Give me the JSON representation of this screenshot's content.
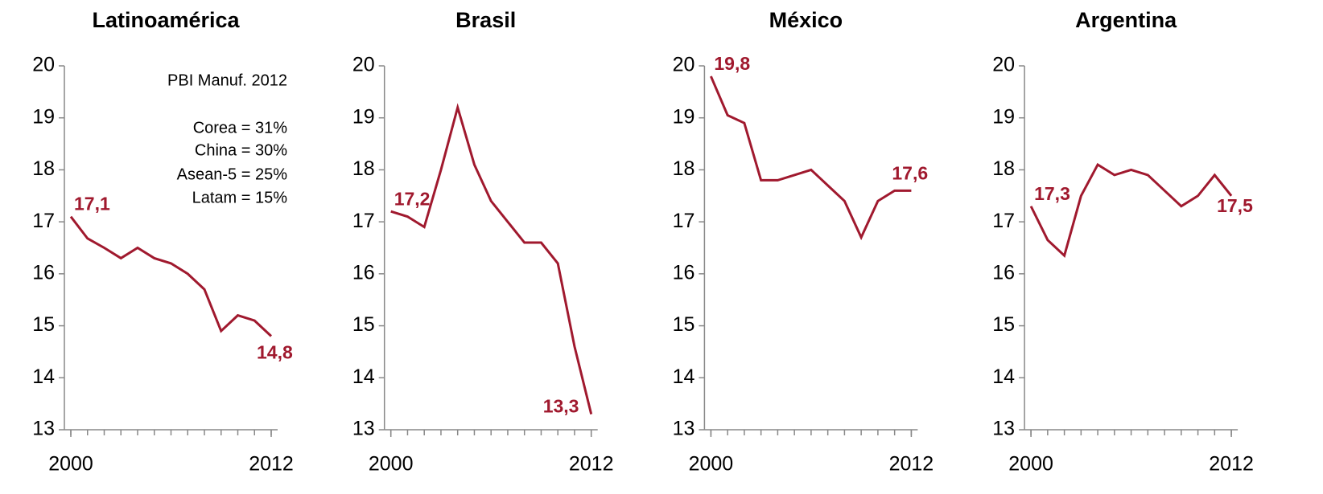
{
  "chart_data": [
    {
      "type": "line",
      "title": "Latinoamérica",
      "x": [
        2000,
        2001,
        2002,
        2003,
        2004,
        2005,
        2006,
        2007,
        2008,
        2009,
        2010,
        2011,
        2012
      ],
      "series": [
        {
          "name": "Latinoamérica",
          "color": "#a0192e",
          "values": [
            17.1,
            16.68,
            16.5,
            16.3,
            16.5,
            16.3,
            16.2,
            16.0,
            15.7,
            14.9,
            15.2,
            15.1,
            14.8
          ],
          "value_labels": [
            "17,1",
            null,
            null,
            null,
            null,
            null,
            null,
            null,
            null,
            null,
            null,
            null,
            "14,8"
          ]
        }
      ],
      "xlim": [
        2000,
        2012
      ],
      "xticks": [
        2000,
        2012
      ],
      "ylim": [
        13,
        20
      ],
      "yticks": [
        13,
        14,
        15,
        16,
        17,
        18,
        19,
        20
      ],
      "annotations": [
        "PBI Manuf. 2012",
        "Corea = 31%",
        "China = 30%",
        "Asean-5 = 25%",
        "Latam = 15%"
      ]
    },
    {
      "type": "line",
      "title": "Brasil",
      "x": [
        2000,
        2001,
        2002,
        2003,
        2004,
        2005,
        2006,
        2007,
        2008,
        2009,
        2010,
        2011,
        2012
      ],
      "series": [
        {
          "name": "Brasil",
          "color": "#a0192e",
          "values": [
            17.2,
            17.1,
            16.9,
            18.0,
            19.2,
            18.1,
            17.4,
            17.0,
            16.6,
            16.6,
            16.2,
            14.6,
            13.3
          ],
          "value_labels": [
            "17,2",
            null,
            null,
            null,
            null,
            null,
            null,
            null,
            null,
            null,
            null,
            null,
            "13,3"
          ]
        }
      ],
      "xlim": [
        2000,
        2012
      ],
      "xticks": [
        2000,
        2012
      ],
      "ylim": [
        13,
        20
      ],
      "yticks": [
        13,
        14,
        15,
        16,
        17,
        18,
        19,
        20
      ]
    },
    {
      "type": "line",
      "title": "México",
      "x": [
        2000,
        2001,
        2002,
        2003,
        2004,
        2005,
        2006,
        2007,
        2008,
        2009,
        2010,
        2011,
        2012
      ],
      "series": [
        {
          "name": "México",
          "color": "#a0192e",
          "values": [
            19.8,
            19.05,
            18.9,
            17.8,
            17.8,
            17.9,
            18.0,
            17.7,
            17.4,
            16.7,
            17.4,
            17.6,
            17.6
          ],
          "value_labels": [
            "19,8",
            null,
            null,
            null,
            null,
            null,
            null,
            null,
            null,
            null,
            null,
            null,
            "17,6"
          ]
        }
      ],
      "xlim": [
        2000,
        2012
      ],
      "xticks": [
        2000,
        2012
      ],
      "ylim": [
        13,
        20
      ],
      "yticks": [
        13,
        14,
        15,
        16,
        17,
        18,
        19,
        20
      ]
    },
    {
      "type": "line",
      "title": "Argentina",
      "x": [
        2000,
        2001,
        2002,
        2003,
        2004,
        2005,
        2006,
        2007,
        2008,
        2009,
        2010,
        2011,
        2012
      ],
      "series": [
        {
          "name": "Argentina",
          "color": "#a0192e",
          "values": [
            17.3,
            16.65,
            16.35,
            17.5,
            18.1,
            17.9,
            18.0,
            17.9,
            17.6,
            17.3,
            17.5,
            17.9,
            17.5
          ],
          "value_labels": [
            "17,3",
            null,
            null,
            null,
            null,
            null,
            null,
            null,
            null,
            null,
            null,
            null,
            "17,5"
          ]
        }
      ],
      "xlim": [
        2000,
        2012
      ],
      "xticks": [
        2000,
        2012
      ],
      "ylim": [
        13,
        20
      ],
      "yticks": [
        13,
        14,
        15,
        16,
        17,
        18,
        19,
        20
      ]
    }
  ]
}
